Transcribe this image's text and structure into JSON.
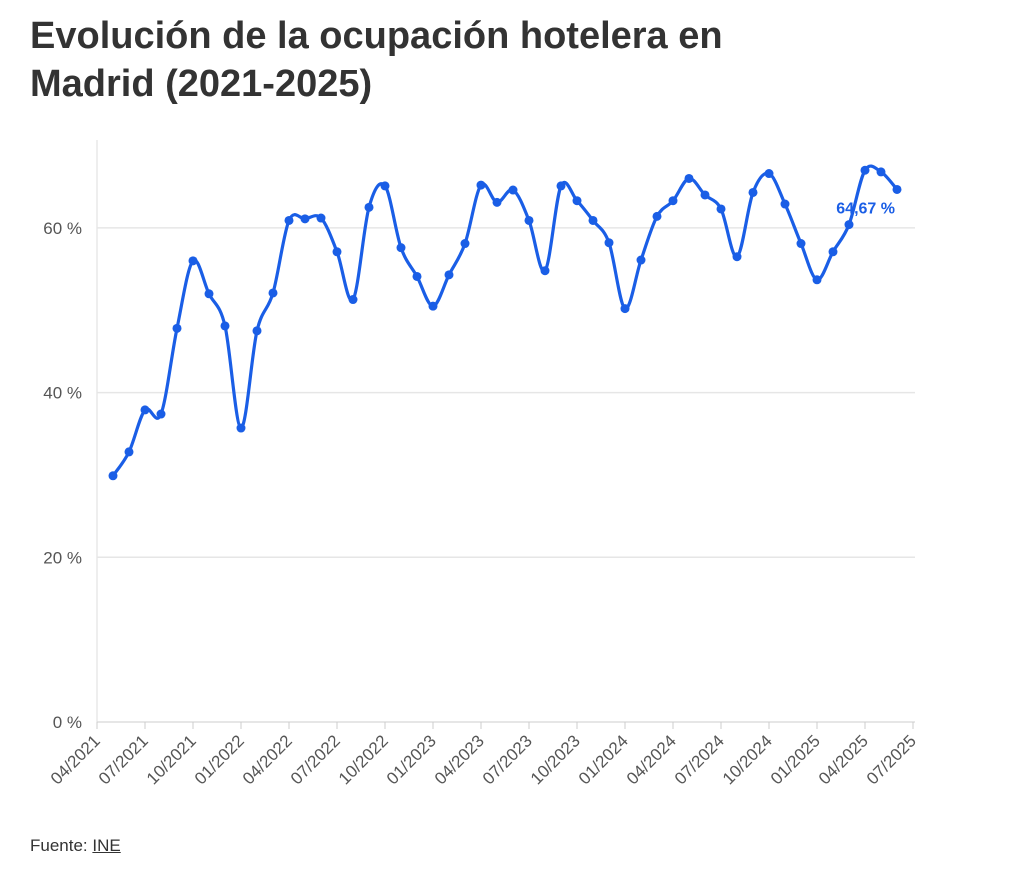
{
  "title": "Evolución de la ocupación hotelera en Madrid (2021-2025)",
  "source": {
    "label": "Fuente:",
    "link": "INE"
  },
  "colors": {
    "line": "#1a5ee6",
    "grid": "#e6e6e6",
    "axis": "#dddddd"
  },
  "chart_data": {
    "type": "line",
    "title": "Evolución de la ocupación hotelera en Madrid (2021-2025)",
    "xlabel": "",
    "ylabel": "",
    "ylim": [
      0,
      70
    ],
    "yticks": [
      0,
      20,
      40,
      60
    ],
    "ytick_labels": [
      "0 %",
      "20 %",
      "40 %",
      "60 %"
    ],
    "xtick_labels": [
      "04/2021",
      "07/2021",
      "10/2021",
      "01/2022",
      "04/2022",
      "07/2022",
      "10/2022",
      "01/2023",
      "04/2023",
      "07/2023",
      "10/2023",
      "01/2024",
      "04/2024",
      "07/2024",
      "10/2024",
      "01/2025",
      "04/2025",
      "07/2025"
    ],
    "x_start": "05/2021",
    "grid": true,
    "series": [
      {
        "name": "Ocupación hotelera",
        "values": [
          29.9,
          32.8,
          37.9,
          37.4,
          47.8,
          56.0,
          52.0,
          48.1,
          35.7,
          47.5,
          52.1,
          60.9,
          61.1,
          61.2,
          57.1,
          51.3,
          62.5,
          65.1,
          57.6,
          54.1,
          50.5,
          54.3,
          58.1,
          65.2,
          63.1,
          64.6,
          60.9,
          54.8,
          65.1,
          63.3,
          60.9,
          58.2,
          50.2,
          56.1,
          61.4,
          63.3,
          66.0,
          64.0,
          62.3,
          56.5,
          64.3,
          66.6,
          62.9,
          58.1,
          53.7,
          57.1,
          60.4,
          67.0,
          66.8,
          64.67
        ]
      }
    ],
    "annotation": "64,67 %"
  }
}
